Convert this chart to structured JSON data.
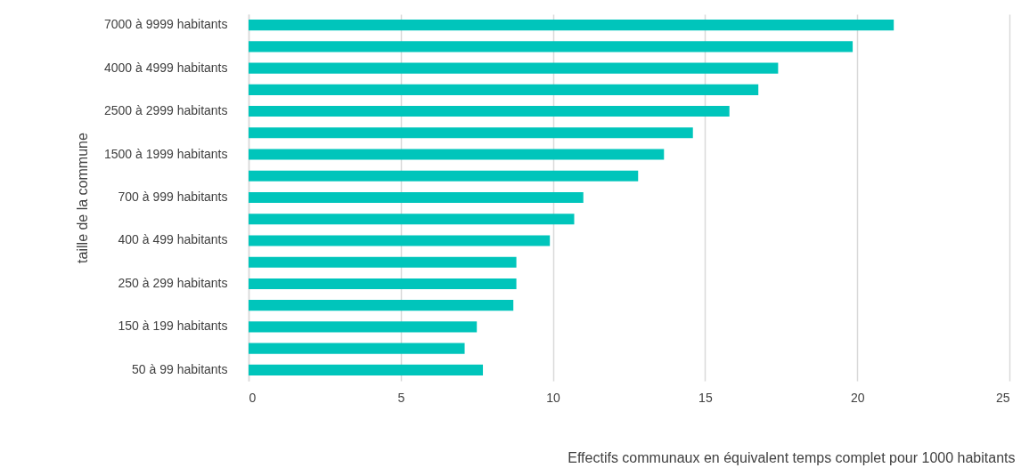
{
  "chart_data": {
    "type": "bar",
    "orientation": "horizontal",
    "categories": [
      "7000 à 9999 habitants",
      null,
      "4000 à 4999 habitants",
      null,
      "2500 à 2999 habitants",
      null,
      "1500 à 1999 habitants",
      null,
      "700 à 999 habitants",
      null,
      "400 à 499 habitants",
      null,
      "250 à 299 habitants",
      null,
      "150 à 199 habitants",
      null,
      "50 à 99 habitants"
    ],
    "values": [
      21.2,
      19.85,
      17.4,
      16.75,
      15.8,
      14.6,
      13.65,
      12.8,
      11.0,
      10.7,
      9.9,
      8.8,
      8.8,
      8.7,
      7.5,
      7.1,
      7.7
    ],
    "color": "#00c5bb",
    "xlim": [
      0,
      25
    ],
    "xticks": [
      0,
      5,
      10,
      15,
      20,
      25
    ],
    "grid": "x",
    "xlabel": "Effectifs communaux en équivalent temps complet pour 1000 habitants",
    "ylabel": "taille de la commune"
  }
}
